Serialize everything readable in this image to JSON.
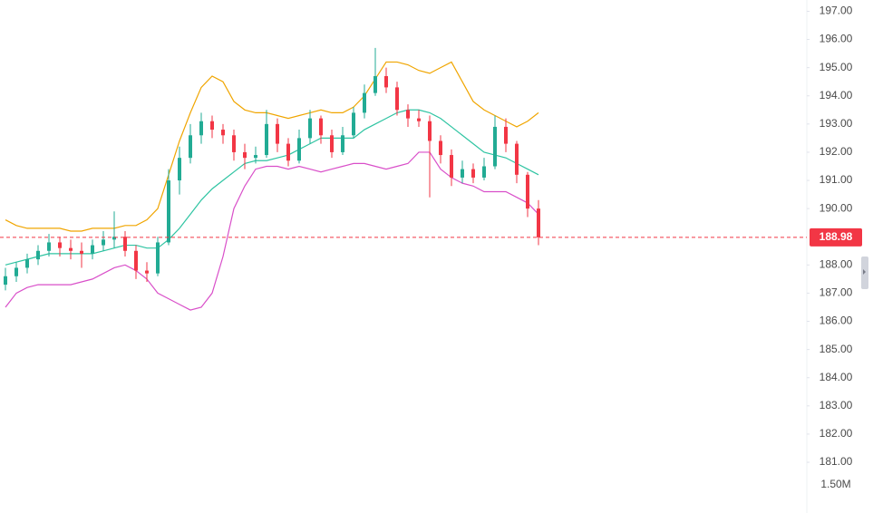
{
  "chart_data": {
    "type": "candlestick",
    "categories": [
      null,
      null,
      null,
      null,
      null,
      null,
      null,
      null,
      null,
      null,
      null,
      null,
      null,
      null,
      null,
      null,
      null,
      null,
      null,
      null,
      null,
      null,
      null,
      null,
      null,
      null,
      null,
      null,
      null,
      null,
      null,
      null,
      null,
      null,
      null,
      null,
      null,
      null,
      null,
      null,
      null,
      null,
      null,
      null,
      null,
      null,
      null,
      null,
      null,
      null
    ],
    "open": [
      187.3,
      187.6,
      187.9,
      188.2,
      188.5,
      188.8,
      188.6,
      188.5,
      188.4,
      188.7,
      188.9,
      189.0,
      188.5,
      187.8,
      187.7,
      188.8,
      191.0,
      191.8,
      192.6,
      193.1,
      192.8,
      192.6,
      192.0,
      191.8,
      191.9,
      193.0,
      192.3,
      191.7,
      192.5,
      193.2,
      192.6,
      192.0,
      192.6,
      193.4,
      194.1,
      194.7,
      194.3,
      193.5,
      193.2,
      193.1,
      192.4,
      191.9,
      191.1,
      191.4,
      191.1,
      191.5,
      192.9,
      192.3,
      191.2,
      190.0
    ],
    "high": [
      187.9,
      188.1,
      188.4,
      188.7,
      189.1,
      189.0,
      188.9,
      188.8,
      188.9,
      189.2,
      189.9,
      189.2,
      188.7,
      188.1,
      189.0,
      191.4,
      192.2,
      193.0,
      193.4,
      193.3,
      193.0,
      192.8,
      192.3,
      192.2,
      193.5,
      193.2,
      192.5,
      192.8,
      193.5,
      193.3,
      192.8,
      192.9,
      193.6,
      194.4,
      195.7,
      195.0,
      194.5,
      193.7,
      193.5,
      193.3,
      192.6,
      192.1,
      191.7,
      191.6,
      191.8,
      193.3,
      193.2,
      192.4,
      191.3,
      190.3
    ],
    "low": [
      187.1,
      187.4,
      187.7,
      188.0,
      188.3,
      188.3,
      188.2,
      187.9,
      188.2,
      188.5,
      188.6,
      188.3,
      187.5,
      187.4,
      187.6,
      188.7,
      190.5,
      191.6,
      192.3,
      192.5,
      192.3,
      191.7,
      191.4,
      191.6,
      191.8,
      192.0,
      191.5,
      191.6,
      192.3,
      192.3,
      191.8,
      191.9,
      192.5,
      193.2,
      194.0,
      194.1,
      193.3,
      192.9,
      192.9,
      190.4,
      191.6,
      190.8,
      190.9,
      190.9,
      191.0,
      191.4,
      192.0,
      190.9,
      189.7,
      188.7
    ],
    "close": [
      187.6,
      187.9,
      188.2,
      188.5,
      188.8,
      188.6,
      188.5,
      188.4,
      188.7,
      188.9,
      189.0,
      188.5,
      187.8,
      187.7,
      188.8,
      191.0,
      191.8,
      192.6,
      193.1,
      192.8,
      192.6,
      192.0,
      191.8,
      191.9,
      193.0,
      192.3,
      191.7,
      192.5,
      193.2,
      192.6,
      192.0,
      192.6,
      193.4,
      194.1,
      194.7,
      194.3,
      193.5,
      193.2,
      193.1,
      192.4,
      191.9,
      191.1,
      191.4,
      191.1,
      191.5,
      192.9,
      192.3,
      191.2,
      190.0,
      188.98
    ],
    "up_color": "#22ab94",
    "down_color": "#f23645",
    "series": [
      {
        "color": "#f0a500",
        "values": [
          189.6,
          189.4,
          189.3,
          189.3,
          189.3,
          189.3,
          189.2,
          189.2,
          189.3,
          189.3,
          189.3,
          189.4,
          189.4,
          189.6,
          190.0,
          191.2,
          192.4,
          193.4,
          194.3,
          194.7,
          194.5,
          193.8,
          193.5,
          193.4,
          193.4,
          193.3,
          193.2,
          193.3,
          193.4,
          193.5,
          193.4,
          193.4,
          193.6,
          194.0,
          194.6,
          195.2,
          195.2,
          195.1,
          194.9,
          194.8,
          195.0,
          195.2,
          194.5,
          193.8,
          193.5,
          193.3,
          193.1,
          192.9,
          193.1,
          193.4
        ]
      },
      {
        "color": "#2ec4a2",
        "values": [
          188.0,
          188.1,
          188.2,
          188.3,
          188.4,
          188.4,
          188.4,
          188.4,
          188.4,
          188.5,
          188.6,
          188.7,
          188.7,
          188.6,
          188.6,
          188.9,
          189.3,
          189.8,
          190.3,
          190.7,
          191.0,
          191.3,
          191.6,
          191.7,
          191.7,
          191.8,
          191.9,
          192.1,
          192.3,
          192.5,
          192.5,
          192.5,
          192.5,
          192.8,
          193.0,
          193.2,
          193.4,
          193.5,
          193.5,
          193.4,
          193.2,
          192.9,
          192.6,
          192.3,
          192.0,
          191.9,
          191.8,
          191.6,
          191.4,
          191.2
        ]
      },
      {
        "color": "#d94fc9",
        "values": [
          186.5,
          187.0,
          187.2,
          187.3,
          187.3,
          187.3,
          187.3,
          187.4,
          187.5,
          187.7,
          187.9,
          188.0,
          187.8,
          187.5,
          187.0,
          186.8,
          186.6,
          186.4,
          186.5,
          187.0,
          188.3,
          190.0,
          190.8,
          191.4,
          191.5,
          191.5,
          191.4,
          191.5,
          191.4,
          191.3,
          191.4,
          191.5,
          191.6,
          191.6,
          191.5,
          191.4,
          191.5,
          191.6,
          192.0,
          192.0,
          191.4,
          191.1,
          190.9,
          190.8,
          190.6,
          190.6,
          190.6,
          190.4,
          190.2,
          189.8
        ]
      }
    ],
    "last_price": 188.98,
    "ylim": [
      179.2,
      197.4
    ],
    "yticks": [
      {
        "value": 197,
        "label": "197.00"
      },
      {
        "value": 196,
        "label": "196.00"
      },
      {
        "value": 195,
        "label": "195.00"
      },
      {
        "value": 194,
        "label": "194.00"
      },
      {
        "value": 193,
        "label": "193.00"
      },
      {
        "value": 192,
        "label": "192.00"
      },
      {
        "value": 191,
        "label": "191.00"
      },
      {
        "value": 190,
        "label": "190.00"
      },
      {
        "value": 188,
        "label": "188.00"
      },
      {
        "value": 187,
        "label": "187.00"
      },
      {
        "value": 186,
        "label": "186.00"
      },
      {
        "value": 185,
        "label": "185.00"
      },
      {
        "value": 184,
        "label": "184.00"
      },
      {
        "value": 183,
        "label": "183.00"
      },
      {
        "value": 182,
        "label": "182.00"
      },
      {
        "value": 181,
        "label": "181.00"
      }
    ],
    "volume_label": "1.50M"
  }
}
